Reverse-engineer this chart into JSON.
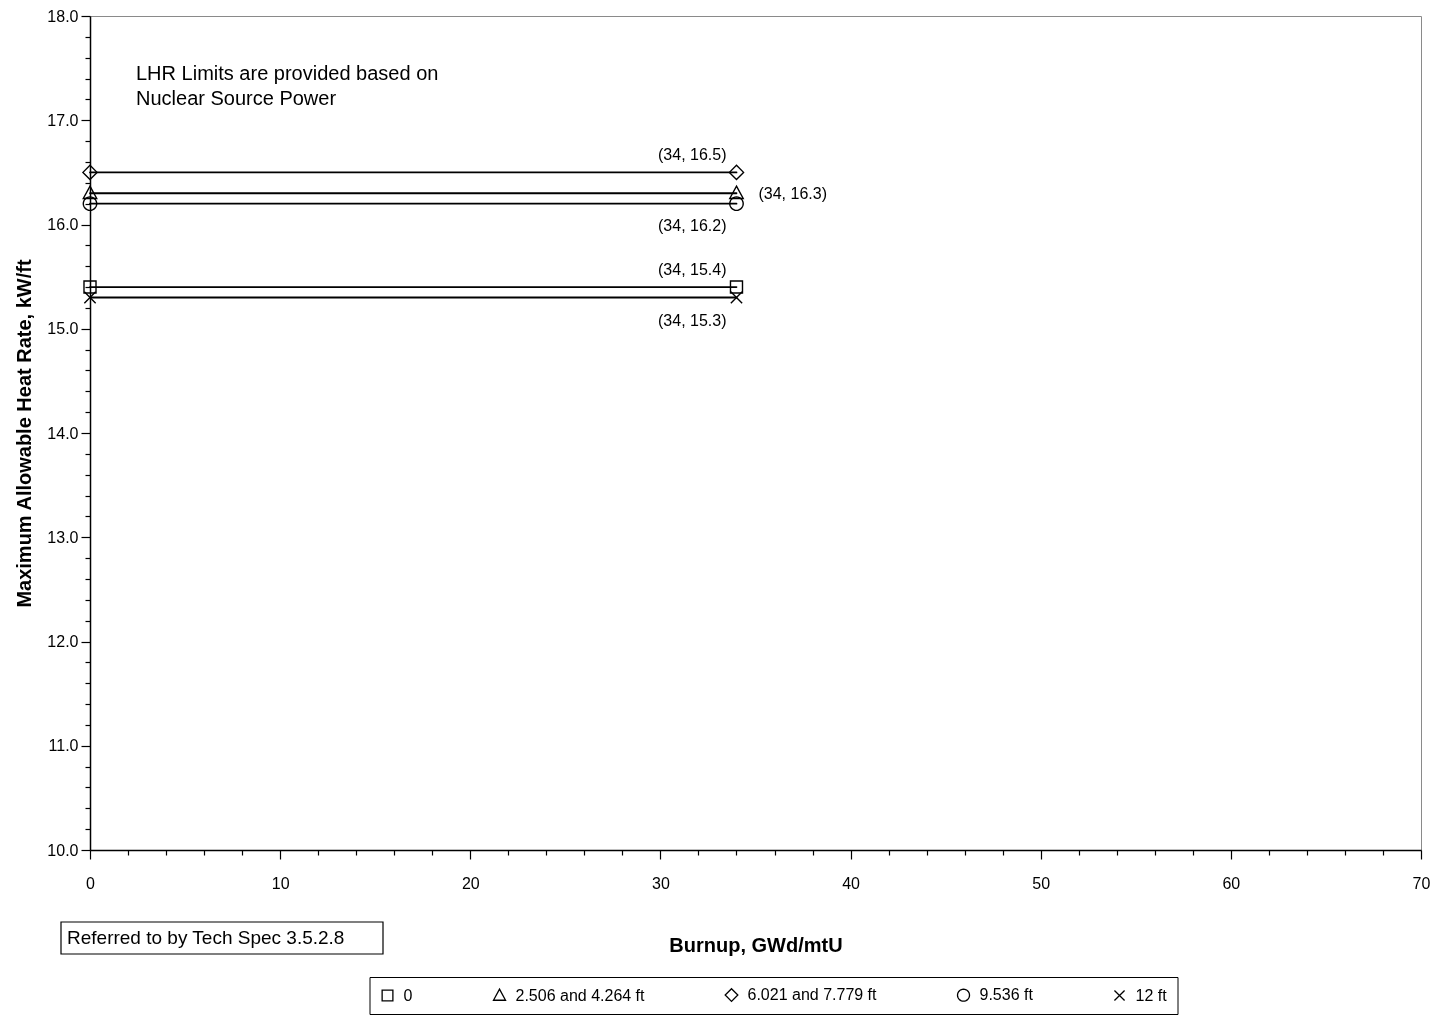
{
  "chart_data": {
    "type": "line",
    "xlabel": "Burnup, GWd/mtU",
    "ylabel": "Maximum Allowable Heat Rate, kW/ft",
    "x": [
      0,
      34
    ],
    "xlim": [
      0,
      70
    ],
    "xticks": [
      0,
      {
        "value": 2,
        "label": null
      },
      {
        "value": 4,
        "label": null
      },
      {
        "value": 6,
        "label": null
      },
      {
        "value": 8,
        "label": null
      },
      10,
      {
        "value": 12,
        "label": null
      },
      {
        "value": 14,
        "label": null
      },
      {
        "value": 16,
        "label": null
      },
      {
        "value": 18,
        "label": null
      },
      20,
      {
        "value": 22,
        "label": null
      },
      {
        "value": 24,
        "label": null
      },
      {
        "value": 26,
        "label": null
      },
      {
        "value": 28,
        "label": null
      },
      30,
      {
        "value": 32,
        "label": null
      },
      {
        "value": 34,
        "label": null
      },
      {
        "value": 36,
        "label": null
      },
      {
        "value": 38,
        "label": null
      },
      40,
      {
        "value": 42,
        "label": null
      },
      {
        "value": 44,
        "label": null
      },
      {
        "value": 46,
        "label": null
      },
      {
        "value": 48,
        "label": null
      },
      50,
      {
        "value": 52,
        "label": null
      },
      {
        "value": 54,
        "label": null
      },
      {
        "value": 56,
        "label": null
      },
      {
        "value": 58,
        "label": null
      },
      60,
      {
        "value": 62,
        "label": null
      },
      {
        "value": 64,
        "label": null
      },
      {
        "value": 66,
        "label": null
      },
      {
        "value": 68,
        "label": null
      },
      70
    ],
    "ylim": [
      10,
      18
    ],
    "yticks": [
      {
        "value": 10,
        "label": "10.0"
      },
      {
        "value": 10.2,
        "label": null
      },
      {
        "value": 10.4,
        "label": null
      },
      {
        "value": 10.6,
        "label": null
      },
      {
        "value": 10.8,
        "label": null
      },
      {
        "value": 11,
        "label": "11.0"
      },
      {
        "value": 11.2,
        "label": null
      },
      {
        "value": 11.4,
        "label": null
      },
      {
        "value": 11.6,
        "label": null
      },
      {
        "value": 11.8,
        "label": null
      },
      {
        "value": 12,
        "label": "12.0"
      },
      {
        "value": 12.2,
        "label": null
      },
      {
        "value": 12.4,
        "label": null
      },
      {
        "value": 12.6,
        "label": null
      },
      {
        "value": 12.8,
        "label": null
      },
      {
        "value": 13,
        "label": "13.0"
      },
      {
        "value": 13.2,
        "label": null
      },
      {
        "value": 13.4,
        "label": null
      },
      {
        "value": 13.6,
        "label": null
      },
      {
        "value": 13.8,
        "label": null
      },
      {
        "value": 14,
        "label": "14.0"
      },
      {
        "value": 14.2,
        "label": null
      },
      {
        "value": 14.4,
        "label": null
      },
      {
        "value": 14.6,
        "label": null
      },
      {
        "value": 14.8,
        "label": null
      },
      {
        "value": 15,
        "label": "15.0"
      },
      {
        "value": 15.2,
        "label": null
      },
      {
        "value": 15.4,
        "label": null
      },
      {
        "value": 15.6,
        "label": null
      },
      {
        "value": 15.8,
        "label": null
      },
      {
        "value": 16,
        "label": "16.0"
      },
      {
        "value": 16.2,
        "label": null
      },
      {
        "value": 16.4,
        "label": null
      },
      {
        "value": 16.6,
        "label": null
      },
      {
        "value": 16.8,
        "label": null
      },
      {
        "value": 17,
        "label": "17.0"
      },
      {
        "value": 17.2,
        "label": null
      },
      {
        "value": 17.4,
        "label": null
      },
      {
        "value": 17.6,
        "label": null
      },
      {
        "value": 17.8,
        "label": null
      },
      {
        "value": 18,
        "label": "18.0"
      }
    ],
    "legend": "bottom",
    "line_style": "solid",
    "series": [
      {
        "name": "0",
        "color": "#000000",
        "marker": "square",
        "values": [
          15.4,
          15.4
        ],
        "value_labels": [
          null,
          "(34, 15.4)"
        ]
      },
      {
        "name": "2.506 and 4.264 ft",
        "color": "#000000",
        "marker": "triangle",
        "values": [
          16.3,
          16.3
        ],
        "value_labels": [
          null,
          "(34, 16.3)"
        ]
      },
      {
        "name": "6.021 and 7.779 ft",
        "color": "#000000",
        "marker": "diamond",
        "values": [
          16.5,
          16.5
        ],
        "value_labels": [
          null,
          "(34, 16.5)"
        ]
      },
      {
        "name": "9.536 ft",
        "color": "#000000",
        "marker": "circle",
        "values": [
          16.2,
          16.2
        ],
        "value_labels": [
          null,
          "(34, 16.2)"
        ]
      },
      {
        "name": "12 ft",
        "color": "#000000",
        "marker": "cross",
        "values": [
          15.3,
          15.3
        ],
        "value_labels": [
          null,
          "(34, 15.3)"
        ]
      }
    ],
    "annotations": [
      "LHR Limits are provided based on\nNuclear Source Power",
      "Referred to by Tech Spec 3.5.2.8"
    ]
  }
}
